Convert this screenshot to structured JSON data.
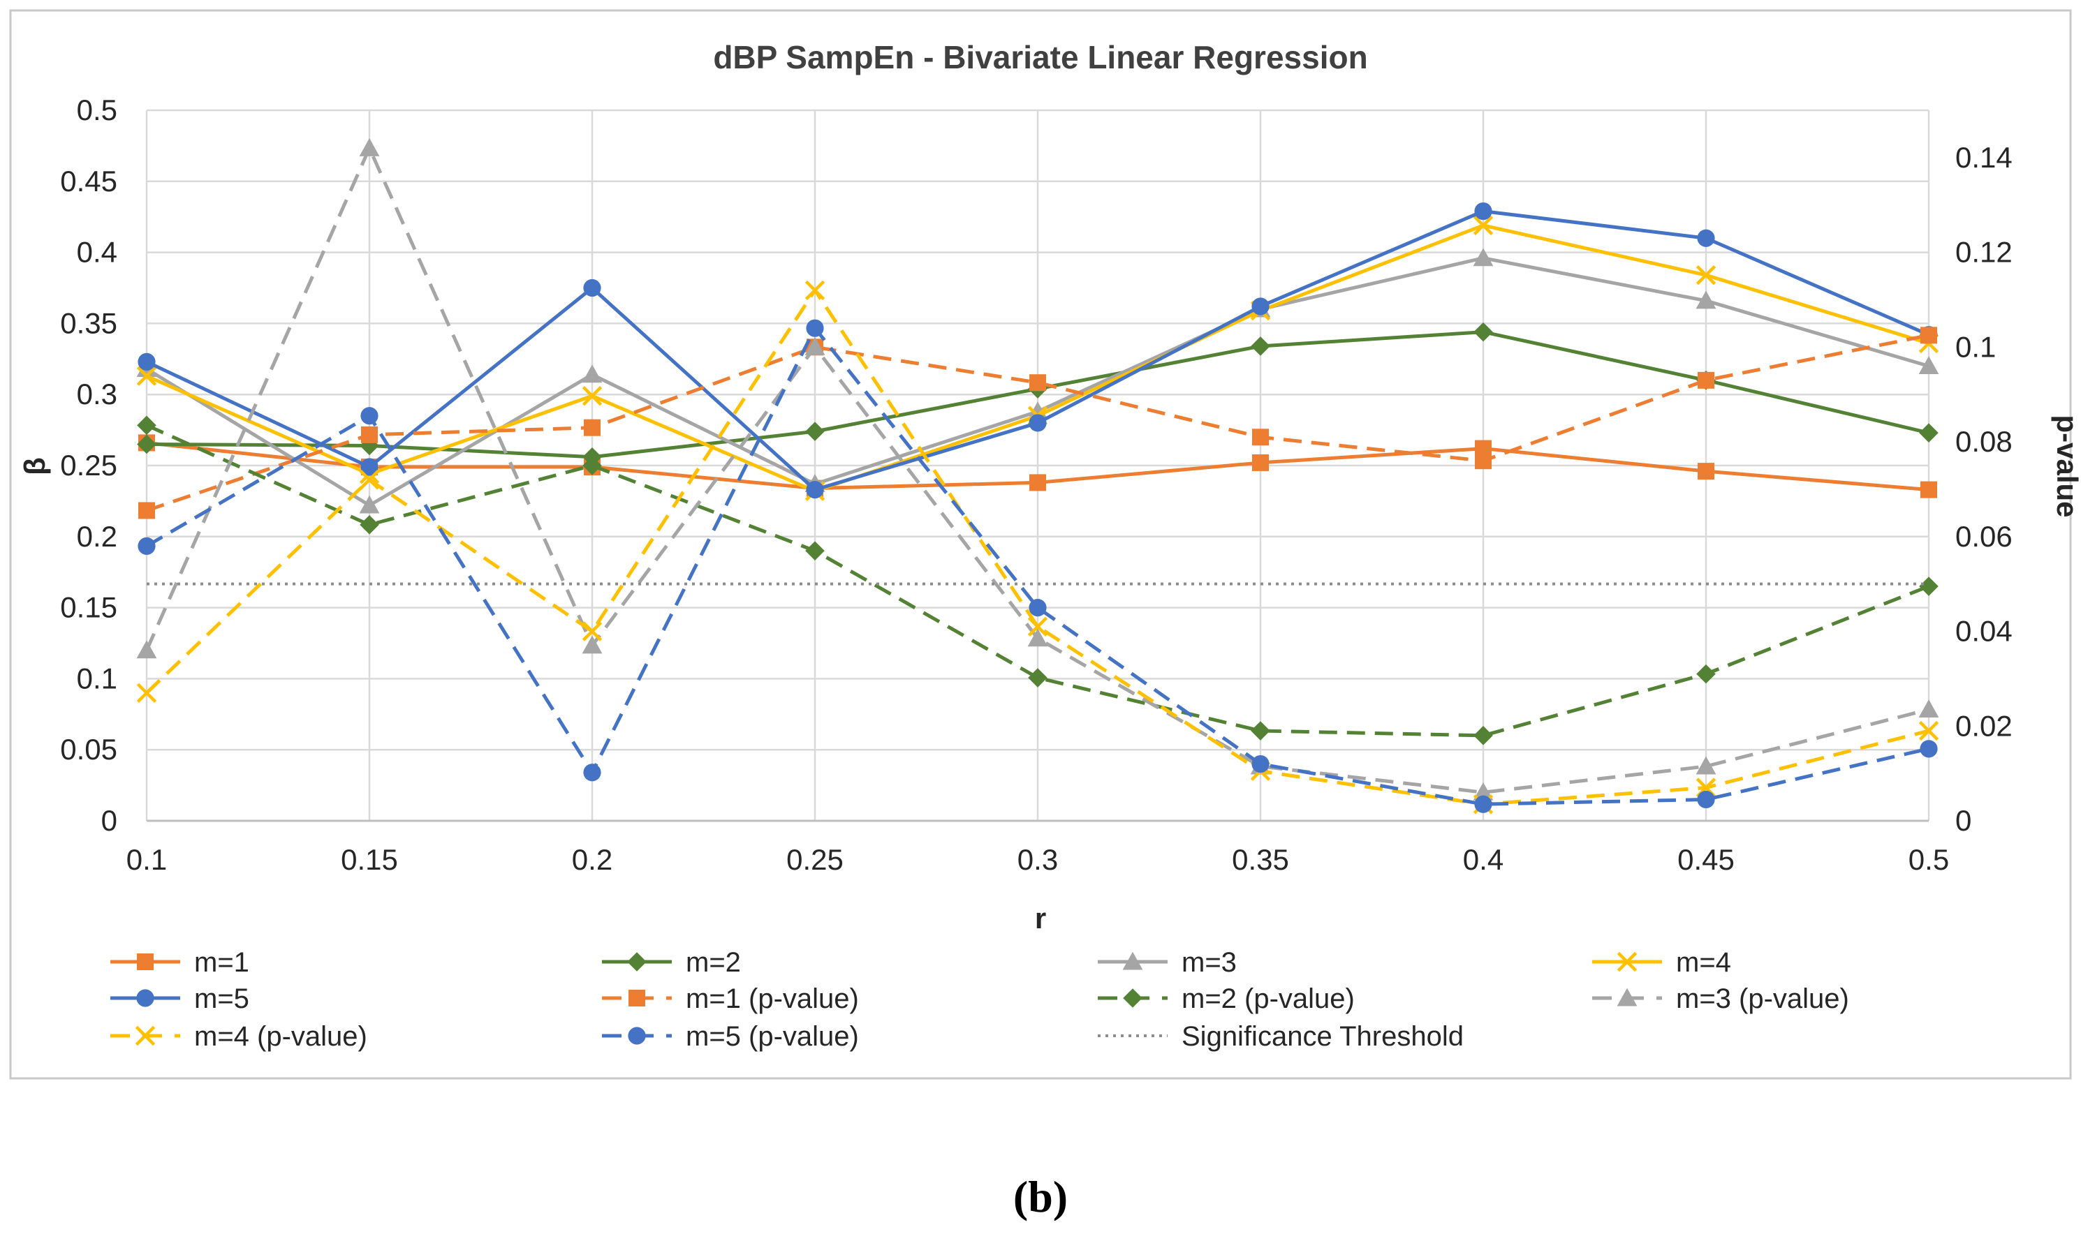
{
  "chart_data": {
    "type": "line",
    "title": "dBP SampEn - Bivariate Linear Regression",
    "xlabel": "r",
    "ylabel": "β",
    "y2label": "p-value",
    "categories": [
      "0.1",
      "0.15",
      "0.2",
      "0.25",
      "0.3",
      "0.35",
      "0.4",
      "0.45",
      "0.5"
    ],
    "ylim": [
      0,
      0.5
    ],
    "y_ticks": [
      "0",
      "0.05",
      "0.1",
      "0.15",
      "0.2",
      "0.25",
      "0.3",
      "0.35",
      "0.4",
      "0.45",
      "0.5"
    ],
    "y2lim": [
      0,
      0.15
    ],
    "y2_ticks": [
      "0",
      "0.02",
      "0.04",
      "0.06",
      "0.08",
      "0.1",
      "0.12",
      "0.14"
    ],
    "grid": true,
    "legend_position": "bottom",
    "series": [
      {
        "name": "m=1",
        "axis": "left",
        "color": "#ED7D31",
        "dash": "solid",
        "marker": "square",
        "values": [
          0.266,
          0.249,
          0.249,
          0.234,
          0.238,
          0.252,
          0.262,
          0.246,
          0.233
        ]
      },
      {
        "name": "m=2",
        "axis": "left",
        "color": "#548235",
        "dash": "solid",
        "marker": "diamond",
        "values": [
          0.265,
          0.264,
          0.256,
          0.274,
          0.304,
          0.334,
          0.344,
          0.31,
          0.273
        ]
      },
      {
        "name": "m=3",
        "axis": "left",
        "color": "#A5A5A5",
        "dash": "solid",
        "marker": "triangle",
        "values": [
          0.318,
          0.222,
          0.314,
          0.237,
          0.288,
          0.36,
          0.396,
          0.366,
          0.32
        ]
      },
      {
        "name": "m=4",
        "axis": "left",
        "color": "#FFC000",
        "dash": "solid",
        "marker": "x",
        "values": [
          0.313,
          0.244,
          0.299,
          0.232,
          0.285,
          0.359,
          0.419,
          0.384,
          0.336
        ]
      },
      {
        "name": "m=5",
        "axis": "left",
        "color": "#4472C4",
        "dash": "solid",
        "marker": "circle",
        "values": [
          0.323,
          0.249,
          0.375,
          0.233,
          0.28,
          0.362,
          0.429,
          0.41,
          0.342
        ]
      },
      {
        "name": "m=1 (p-value)",
        "axis": "right",
        "color": "#ED7D31",
        "dash": "dashed",
        "marker": "square",
        "values": [
          0.0655,
          0.0815,
          0.083,
          0.1,
          0.0925,
          0.081,
          0.076,
          0.093,
          0.1025
        ]
      },
      {
        "name": "m=2 (p-value)",
        "axis": "right",
        "color": "#548235",
        "dash": "dashed",
        "marker": "diamond",
        "values": [
          0.0835,
          0.0625,
          0.075,
          0.057,
          0.0302,
          0.019,
          0.018,
          0.031,
          0.0495
        ]
      },
      {
        "name": "m=3 (p-value)",
        "axis": "right",
        "color": "#A5A5A5",
        "dash": "dashed",
        "marker": "triangle",
        "values": [
          0.036,
          0.142,
          0.037,
          0.1,
          0.0385,
          0.0115,
          0.006,
          0.0115,
          0.0235
        ]
      },
      {
        "name": "m=4 (p-value)",
        "axis": "right",
        "color": "#FFC000",
        "dash": "dashed",
        "marker": "x",
        "values": [
          0.027,
          0.072,
          0.04,
          0.112,
          0.041,
          0.0105,
          0.0035,
          0.007,
          0.019
        ]
      },
      {
        "name": "m=5 (p-value)",
        "axis": "right",
        "color": "#4472C4",
        "dash": "dashed",
        "marker": "circle",
        "values": [
          0.058,
          0.0855,
          0.0102,
          0.104,
          0.045,
          0.012,
          0.0035,
          0.0045,
          0.0152
        ]
      },
      {
        "name": "Significance Threshold",
        "axis": "right",
        "color": "#8C8C8C",
        "dash": "dotted",
        "marker": "none",
        "values": [
          0.05,
          0.05,
          0.05,
          0.05,
          0.05,
          0.05,
          0.05,
          0.05,
          0.05
        ]
      }
    ]
  },
  "caption": "(b)"
}
